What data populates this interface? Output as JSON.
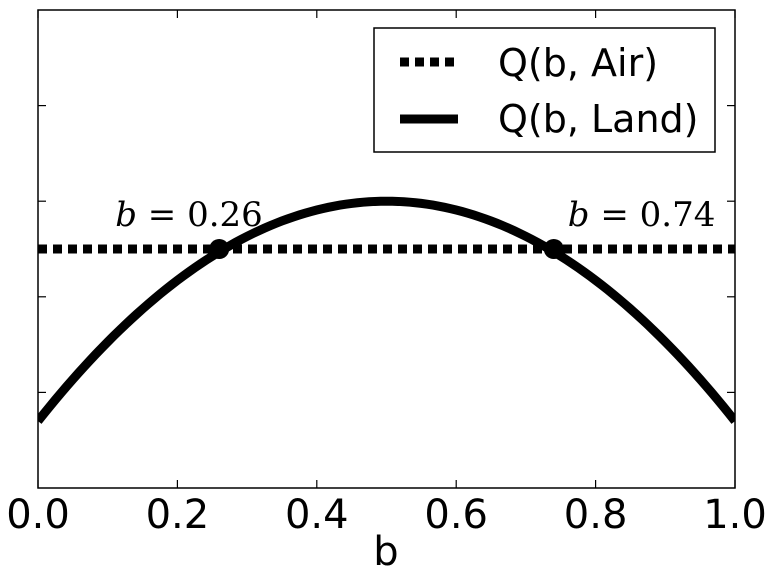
{
  "chart_data": {
    "type": "line",
    "xlabel": "b",
    "ylabel": "",
    "xlim": [
      0.0,
      1.0
    ],
    "ylim": [
      0.0,
      1.0
    ],
    "x_ticks": [
      "0.0",
      "0.2",
      "0.4",
      "0.6",
      "0.8",
      "1.0"
    ],
    "y_ticks": [
      0.2,
      0.4,
      0.6,
      0.8
    ],
    "y_tick_labels_shown": false,
    "grid": false,
    "legend_position": "top-right",
    "series": [
      {
        "name": "Q(b, Air)",
        "style": "dotted",
        "color": "#000000",
        "x": [
          0.0,
          1.0
        ],
        "values": [
          0.5,
          0.5
        ]
      },
      {
        "name": "Q(b, Land)",
        "style": "solid",
        "color": "#000000",
        "x": [
          0.0,
          0.1,
          0.2,
          0.26,
          0.3,
          0.4,
          0.5,
          0.6,
          0.7,
          0.74,
          0.8,
          0.9,
          1.0
        ],
        "values": [
          0.14,
          0.3,
          0.45,
          0.5,
          0.53,
          0.58,
          0.6,
          0.58,
          0.53,
          0.5,
          0.45,
          0.3,
          0.14
        ]
      }
    ],
    "points": [
      {
        "x": 0.26,
        "y": 0.5,
        "label": "0.26",
        "prefix": "b"
      },
      {
        "x": 0.74,
        "y": 0.5,
        "label": "0.74",
        "prefix": "b"
      }
    ]
  }
}
